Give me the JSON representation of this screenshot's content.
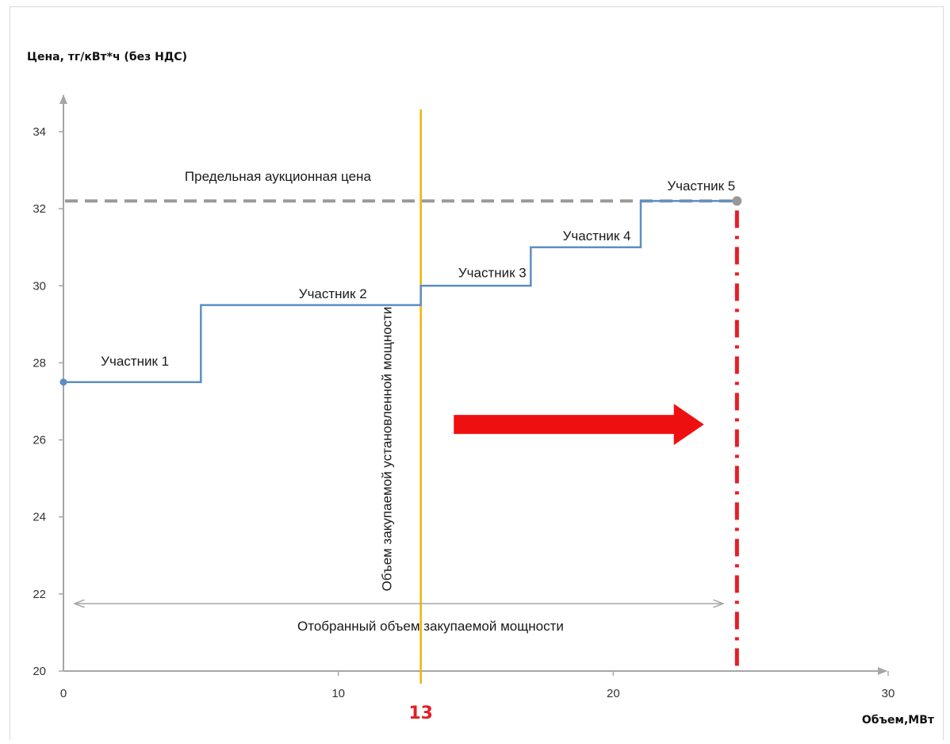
{
  "chart_data": {
    "type": "line",
    "ylabel": "Цена, тг/кВт*ч (без НДС)",
    "xlabel": "Объем,МВт",
    "xlim": [
      0,
      30
    ],
    "ylim": [
      20,
      34
    ],
    "x_ticks": [
      0,
      10,
      20,
      30
    ],
    "y_ticks": [
      20,
      22,
      24,
      26,
      28,
      30,
      32,
      34
    ],
    "grid": false,
    "series": [
      {
        "type": "step",
        "color": "#5b8fc4",
        "points": [
          [
            0,
            27.5
          ],
          [
            5,
            27.5
          ],
          [
            5,
            29.5
          ],
          [
            13,
            29.5
          ],
          [
            13,
            30
          ],
          [
            17,
            30
          ],
          [
            17,
            31
          ],
          [
            21,
            31
          ],
          [
            21,
            32.2
          ],
          [
            24.5,
            32.2
          ]
        ]
      }
    ],
    "participants": [
      {
        "label": "Участник 1",
        "x": 2.6,
        "y": 28.05
      },
      {
        "label": "Участник 2",
        "x": 9.8,
        "y": 29.8
      },
      {
        "label": "Участник 3",
        "x": 15.6,
        "y": 30.35
      },
      {
        "label": "Участник 4",
        "x": 19.4,
        "y": 31.3
      },
      {
        "label": "Участник 5",
        "x": 23.2,
        "y": 32.6
      }
    ],
    "price_cap": {
      "value": 32.2,
      "label": "Предельная аукционная цена",
      "color": "#999999",
      "label_x": 7.8,
      "label_y": 32.85
    },
    "demand_line": {
      "x": 13,
      "label": "Объем закупаемой установленной мощности",
      "marker": "13",
      "color": "#f0b400"
    },
    "selected_line": {
      "x": 24.5,
      "color": "#e41e26"
    },
    "selected_range": {
      "from": 0.4,
      "to": 24,
      "y": 21.75,
      "label": "Отобранный объем закупаемой мощности"
    },
    "arrow": {
      "from": 14.2,
      "to": 23.3,
      "y": 26.4,
      "color": "#ee1010"
    }
  }
}
